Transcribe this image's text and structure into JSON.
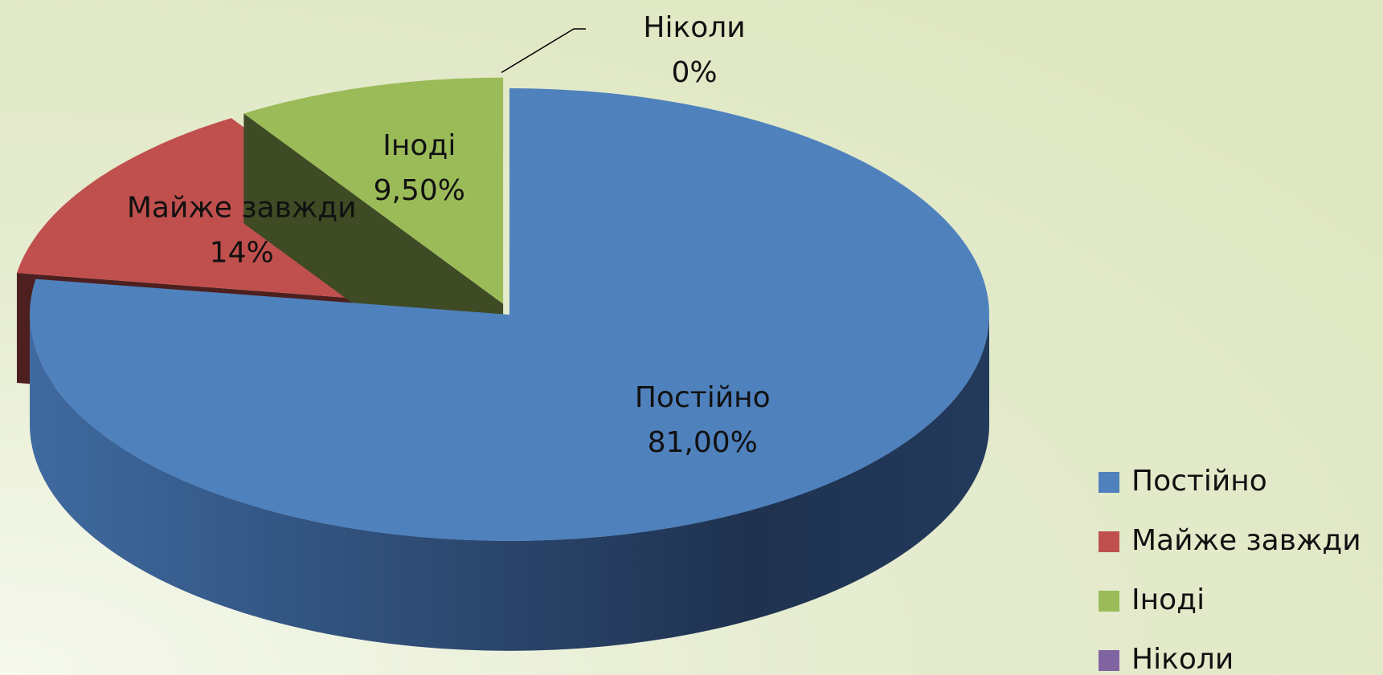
{
  "chart_data": {
    "type": "pie",
    "categories": [
      "Постійно",
      "Майже завжди",
      "Іноді",
      "Ніколи"
    ],
    "values": [
      81,
      14,
      9.5,
      0
    ],
    "value_labels": [
      "81,00%",
      "14%",
      "9,50%",
      "0%"
    ],
    "colors": [
      "#4f81bd",
      "#c0504d",
      "#9bbb59",
      "#8064a2"
    ],
    "legend": "right"
  }
}
